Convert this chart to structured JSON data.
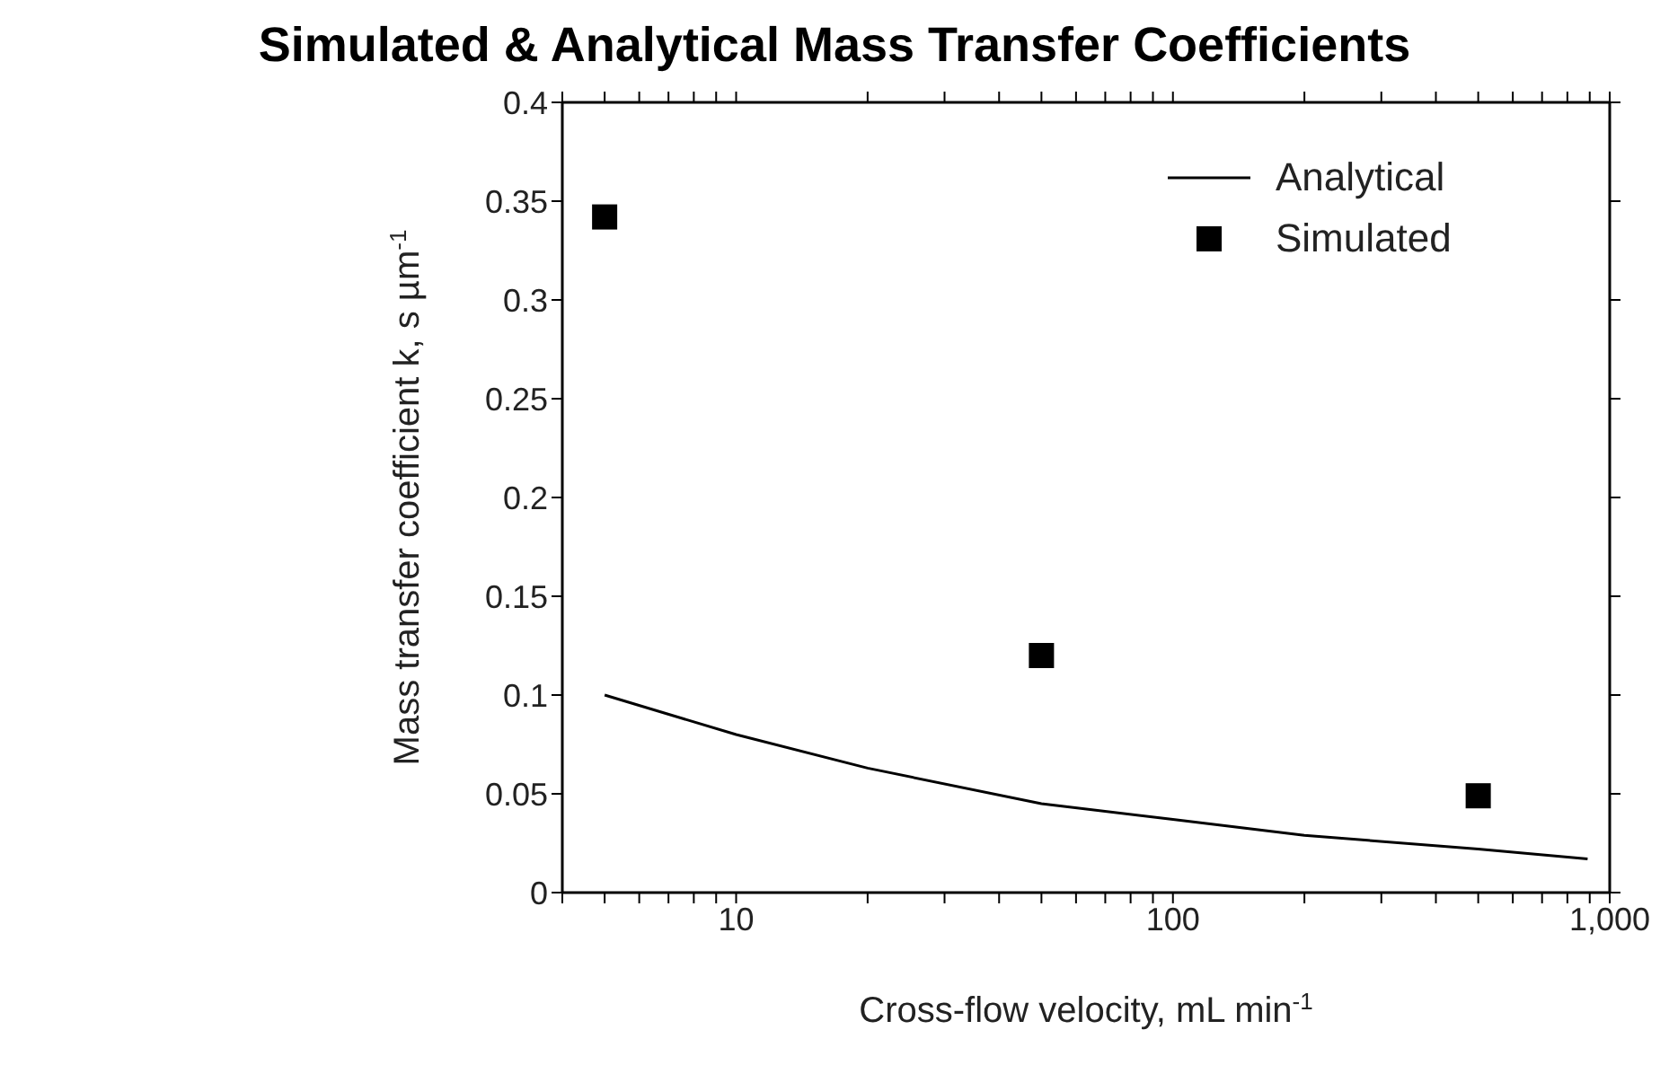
{
  "chart_data": {
    "type": "scatter",
    "title": "Simulated & Analytical Mass Transfer Coefficients",
    "xlabel": "Cross-flow velocity, mL min$^{-1}$",
    "ylabel": "Mass transfer coefficient k, s µm$^{-1}$",
    "log": "x",
    "xlim": [
      4,
      1000
    ],
    "xticks": [
      {
        "value": 4,
        "label": null
      },
      {
        "value": 5,
        "label": null
      },
      {
        "value": 6,
        "label": null
      },
      {
        "value": 7,
        "label": null
      },
      {
        "value": 8,
        "label": null
      },
      {
        "value": 9,
        "label": null
      },
      10,
      {
        "value": 20,
        "label": null
      },
      {
        "value": 30,
        "label": null
      },
      {
        "value": 40,
        "label": null
      },
      {
        "value": 50,
        "label": null
      },
      {
        "value": 60,
        "label": null
      },
      {
        "value": 70,
        "label": null
      },
      {
        "value": 80,
        "label": null
      },
      {
        "value": 90,
        "label": null
      },
      100,
      {
        "value": 200,
        "label": null
      },
      {
        "value": 300,
        "label": null
      },
      {
        "value": 400,
        "label": null
      },
      {
        "value": 500,
        "label": null
      },
      {
        "value": 600,
        "label": null
      },
      {
        "value": 700,
        "label": null
      },
      {
        "value": 800,
        "label": null
      },
      {
        "value": 900,
        "label": null
      },
      {
        "value": 1000,
        "label": "1,000"
      }
    ],
    "ylim": [
      0,
      0.4
    ],
    "yticks": [
      0,
      0.05,
      0.1,
      0.15,
      0.2,
      0.25,
      0.3,
      0.35,
      0.4
    ],
    "legend": "top right",
    "series": [
      {
        "name": "Analytical",
        "type": "line",
        "color": "#000000",
        "marker": "none",
        "line_style": "solid",
        "x": [
          5,
          10,
          20,
          50,
          100,
          200,
          500,
          890
        ],
        "values": [
          0.1,
          0.08,
          0.063,
          0.045,
          0.037,
          0.029,
          0.022,
          0.017
        ]
      },
      {
        "name": "Simulated",
        "color": "#000000",
        "marker": "square",
        "x": [
          5,
          50,
          500
        ],
        "values": [
          0.342,
          0.12,
          0.049
        ]
      }
    ]
  }
}
